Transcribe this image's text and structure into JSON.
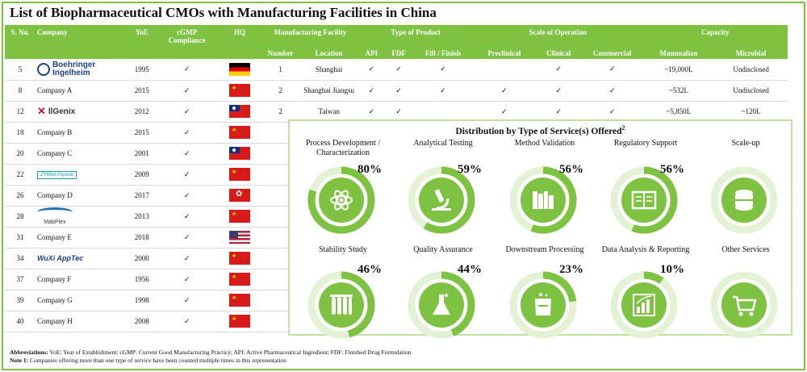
{
  "title": "List of Biopharmaceutical CMOs with Manufacturing Facilities in China",
  "table": {
    "headers_top": {
      "sno": "S. No.",
      "company": "Company",
      "yoe": "YoE",
      "cgmp": "cGMP Compliance",
      "hq": "HQ",
      "mfg": "Manufacturing Facility",
      "type": "Type of Product",
      "scale": "Scale of Operation",
      "capacity": "Capacity"
    },
    "headers_sub": [
      "Number",
      "Location",
      "API",
      "FDF",
      "Fill / Finish",
      "Preclinical",
      "Clinical",
      "Commercial",
      "Mammalian",
      "Microbial"
    ],
    "rows": [
      {
        "sno": "5",
        "company": "",
        "logo": "Boehringer Ingelheim",
        "yoe": "1995",
        "cgmp": "✓",
        "flag": "de",
        "number": "1",
        "location": "Shanghai",
        "api": "✓",
        "fdf": "✓",
        "fill": "✓",
        "pre": "",
        "clin": "✓",
        "comm": "✓",
        "mamm": "~19,000L",
        "micro": "Undisclosed"
      },
      {
        "sno": "8",
        "company": "Company A",
        "logo": "",
        "yoe": "2015",
        "cgmp": "✓",
        "flag": "cn",
        "number": "2",
        "location": "Shanghai Jiangsu",
        "api": "✓",
        "fdf": "✓",
        "fill": "✓",
        "pre": "✓",
        "clin": "✓",
        "comm": "✓",
        "mamm": "~532L",
        "micro": "Undisclosed"
      },
      {
        "sno": "12",
        "company": "",
        "logo": "AllGenix",
        "yoe": "2012",
        "cgmp": "✓",
        "flag": "tw",
        "number": "2",
        "location": "Taiwan",
        "api": "✓",
        "fdf": "✓",
        "fill": "",
        "pre": "✓",
        "clin": "✓",
        "comm": "✓",
        "mamm": "~5,850L",
        "micro": "~120L"
      },
      {
        "sno": "18",
        "company": "Company B",
        "logo": "",
        "yoe": "2015",
        "cgmp": "✓",
        "flag": "cn"
      },
      {
        "sno": "20",
        "company": "Company C",
        "logo": "",
        "yoe": "2001",
        "cgmp": "✓",
        "flag": "tw"
      },
      {
        "sno": "22",
        "company": "",
        "logo": "ZYMed Peptide",
        "yoe": "2009",
        "cgmp": "✓",
        "flag": "cn"
      },
      {
        "sno": "26",
        "company": "Company D",
        "logo": "",
        "yoe": "2017",
        "cgmp": "✓",
        "flag": "hk"
      },
      {
        "sno": "28",
        "company": "",
        "logo": "MabPlex",
        "yoe": "2013",
        "cgmp": "✓",
        "flag": "cn"
      },
      {
        "sno": "31",
        "company": "Company E",
        "logo": "",
        "yoe": "2018",
        "cgmp": "✓",
        "flag": "us"
      },
      {
        "sno": "34",
        "company": "",
        "logo": "WuXi AppTec",
        "yoe": "2000",
        "cgmp": "✓",
        "flag": "cn"
      },
      {
        "sno": "37",
        "company": "Company F",
        "logo": "",
        "yoe": "1956",
        "cgmp": "✓",
        "flag": "cn"
      },
      {
        "sno": "39",
        "company": "Company G",
        "logo": "",
        "yoe": "1998",
        "cgmp": "✓",
        "flag": "cn"
      },
      {
        "sno": "40",
        "company": "Company H",
        "logo": "",
        "yoe": "2008",
        "cgmp": "✓",
        "flag": "cn"
      }
    ]
  },
  "chart_data": {
    "type": "donut",
    "title": "Distribution by Type of Service(s) Offered",
    "title_sup": "2",
    "categories": [
      "Process Development / Characterization",
      "Analytical Testing",
      "Method Validation",
      "Regulatory Support",
      "Scale-up",
      "Stability Study",
      "Quality Assurance",
      "Downstream Processing",
      "Data Analysis & Reporting",
      "Other Services"
    ],
    "values": [
      80,
      59,
      56,
      56,
      null,
      46,
      44,
      23,
      10,
      null
    ],
    "labels": [
      "80%",
      "59%",
      "56%",
      "56%",
      "",
      "46%",
      "44%",
      "23%",
      "10%",
      ""
    ],
    "icons": [
      "atom-icon",
      "microscope-icon",
      "books-icon",
      "book-icon",
      "database-icon",
      "test-tubes-icon",
      "flask-icon",
      "beaker-icon",
      "bar-chart-icon",
      "cart-icon"
    ],
    "colors": {
      "fill": "#7dc241",
      "track": "#e3f1d4"
    }
  },
  "footer": {
    "abbr_label": "Abbreviations:",
    "abbr_text": "YoE: Year of Establishment; cGMP: Current Good Manufacturing Practice; API: Active Pharmaceutical Ingredient; FDF: Finished Drug Formulation",
    "note_label": "Note 1:",
    "note_text": "Companies offering more than one type of service have been counted multiple times in this representation"
  }
}
